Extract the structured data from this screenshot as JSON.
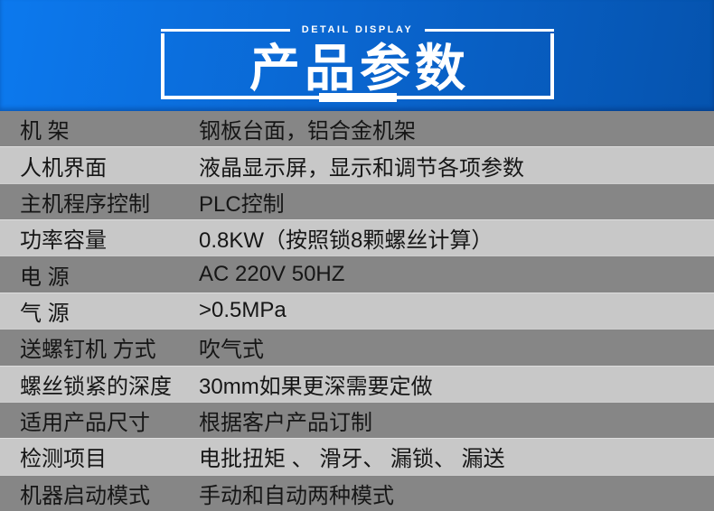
{
  "banner": {
    "tagline": "DETAIL DISPLAY",
    "title": "产品参数",
    "colors": {
      "gradient_start": "#0c79ee",
      "gradient_mid": "#0a66d0",
      "gradient_end": "#0553ae",
      "frame": "#ffffff",
      "text": "#ffffff"
    }
  },
  "table": {
    "colors": {
      "row_dark": "#868686",
      "row_light": "#c8c8c8",
      "text": "#161616"
    },
    "rows": [
      {
        "label": "机 架",
        "value": "钢板台面，铝合金机架"
      },
      {
        "label": "人机界面",
        "value": "液晶显示屏，显示和调节各项参数"
      },
      {
        "label": "主机程序控制",
        "value": "PLC控制"
      },
      {
        "label": "功率容量",
        "value": "0.8KW（按照锁8颗螺丝计算）"
      },
      {
        "label": "电 源",
        "value": "AC 220V 50HZ"
      },
      {
        "label": "气 源",
        "value": ">0.5MPa"
      },
      {
        "label": "送螺钉机 方式",
        "value": "吹气式"
      },
      {
        "label": "螺丝锁紧的深度",
        "value": "30mm如果更深需要定做"
      },
      {
        "label": "适用产品尺寸",
        "value": "根据客户产品订制"
      },
      {
        "label": "检测项目",
        "value": "电批扭矩 、 滑牙、 漏锁、 漏送"
      },
      {
        "label": "机器启动模式",
        "value": "手动和自动两种模式"
      }
    ]
  }
}
